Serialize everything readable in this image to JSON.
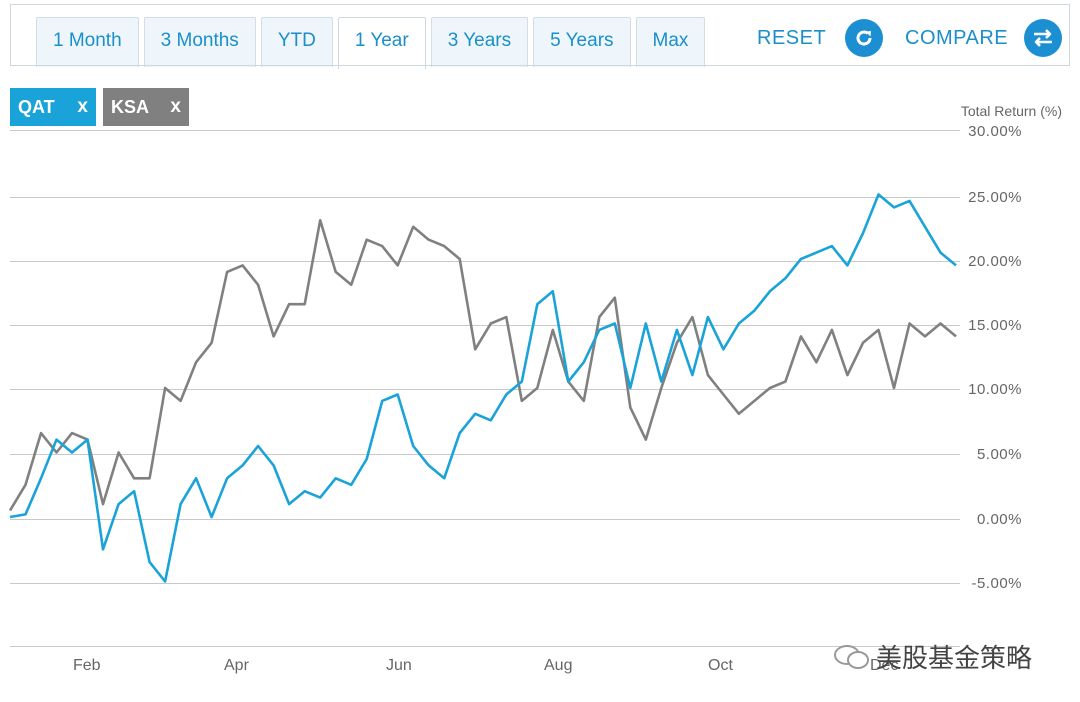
{
  "toolbar": {
    "tabs": [
      "1 Month",
      "3 Months",
      "YTD",
      "1 Year",
      "3 Years",
      "5 Years",
      "Max"
    ],
    "active_tab": "1 Year",
    "reset_label": "RESET",
    "compare_label": "COMPARE"
  },
  "chips": [
    {
      "ticker": "QAT",
      "remove": "x",
      "color": "#1aa3d8"
    },
    {
      "ticker": "KSA",
      "remove": "x",
      "color": "#808080"
    }
  ],
  "watermark": "美股基金策略",
  "chart_data": {
    "type": "line",
    "ylabel": "Total Return (%)",
    "ylim": [
      -10,
      30
    ],
    "yticks": [
      "30.00%",
      "25.00%",
      "20.00%",
      "15.00%",
      "10.00%",
      "5.00%",
      "0.00%",
      "-5.00%"
    ],
    "xticks": [
      "Feb",
      "Apr",
      "Jun",
      "Aug",
      "Oct",
      "Dec"
    ],
    "x": [
      "Jan",
      "Jan",
      "Jan",
      "Jan",
      "Jan",
      "Feb",
      "Feb",
      "Feb",
      "Feb",
      "Feb",
      "Feb",
      "Mar",
      "Mar",
      "Mar",
      "Mar",
      "Mar",
      "Mar",
      "Apr",
      "Apr",
      "Apr",
      "Apr",
      "Apr",
      "May",
      "May",
      "May",
      "May",
      "May",
      "Jun",
      "Jun",
      "Jun",
      "Jun",
      "Jun",
      "Jul",
      "Jul",
      "Jul",
      "Jul",
      "Jul",
      "Aug",
      "Aug",
      "Aug",
      "Aug",
      "Aug",
      "Sep",
      "Sep",
      "Sep",
      "Sep",
      "Sep",
      "Oct",
      "Oct",
      "Oct",
      "Oct",
      "Oct",
      "Nov",
      "Nov",
      "Nov",
      "Nov",
      "Nov",
      "Dec",
      "Dec",
      "Dec",
      "Dec",
      "Dec"
    ],
    "series": [
      {
        "name": "QAT",
        "color": "#1aa3d8",
        "values": [
          0.0,
          0.2,
          3.0,
          6.0,
          5.0,
          6.0,
          -2.5,
          1.0,
          2.0,
          -3.5,
          -5.0,
          1.0,
          3.0,
          0.0,
          3.0,
          4.0,
          5.5,
          4.0,
          1.0,
          2.0,
          1.5,
          3.0,
          2.5,
          4.5,
          9.0,
          9.5,
          5.5,
          4.0,
          3.0,
          6.5,
          8.0,
          7.5,
          9.5,
          10.5,
          16.5,
          17.5,
          10.5,
          12.0,
          14.5,
          15.0,
          10.0,
          15.0,
          10.5,
          14.5,
          11.0,
          15.5,
          13.0,
          15.0,
          16.0,
          17.5,
          18.5,
          20.0,
          20.5,
          21.0,
          19.5,
          22.0,
          25.0,
          24.0,
          24.5,
          22.5,
          20.5,
          19.5
        ]
      },
      {
        "name": "KSA",
        "color": "#808080",
        "values": [
          0.5,
          2.5,
          6.5,
          5.0,
          6.5,
          6.0,
          1.0,
          5.0,
          3.0,
          3.0,
          10.0,
          9.0,
          12.0,
          13.5,
          19.0,
          19.5,
          18.0,
          14.0,
          16.5,
          16.5,
          23.0,
          19.0,
          18.0,
          21.5,
          21.0,
          19.5,
          22.5,
          21.5,
          21.0,
          20.0,
          13.0,
          15.0,
          15.5,
          9.0,
          10.0,
          14.5,
          10.5,
          9.0,
          15.5,
          17.0,
          8.5,
          6.0,
          10.0,
          13.5,
          15.5,
          11.0,
          9.5,
          8.0,
          9.0,
          10.0,
          10.5,
          14.0,
          12.0,
          14.5,
          11.0,
          13.5,
          14.5,
          10.0,
          15.0,
          14.0,
          15.0,
          14.0
        ]
      }
    ]
  }
}
